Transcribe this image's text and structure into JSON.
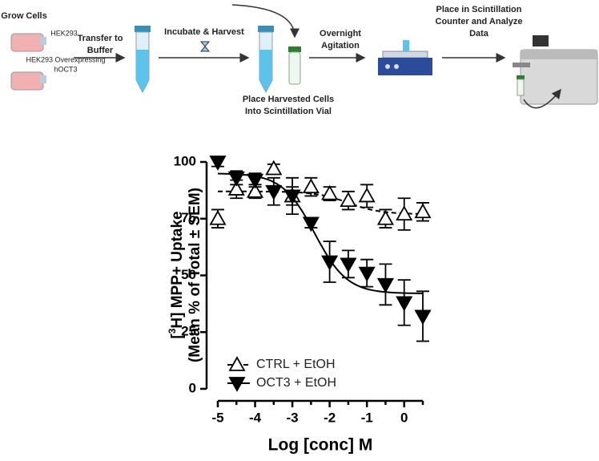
{
  "workflow": {
    "steps": [
      {
        "label": [
          "Grow Cells"
        ]
      },
      {
        "label": [
          "HEK293"
        ]
      },
      {
        "label": [
          "HEK293 Overexpressing",
          "hOCT3"
        ]
      },
      {
        "label": [
          "Transfer to",
          "Buffer"
        ]
      },
      {
        "label": [
          "Incubate & Harvest"
        ]
      },
      {
        "label": [
          "Place Harvested Cells",
          "Into Scintillation Vial"
        ]
      },
      {
        "label": [
          "Overnight",
          "Agitation"
        ]
      },
      {
        "label": [
          "Place in Scintillation",
          "Counter and Analyze",
          "Data"
        ]
      }
    ]
  },
  "chart_data": {
    "type": "scatter",
    "y_label": {
      "pre": "[",
      "sup": "3",
      "post": "H] MPP+ Uptake",
      "line2": "(Mean % of Total ± SEM)"
    },
    "x_label": "Log [conc] M",
    "xlim": [
      -5,
      0.5
    ],
    "xticks": [
      -5,
      -4,
      -3,
      -2,
      -1,
      0
    ],
    "xminorticks": [
      -4.5,
      -3.5,
      -2.5,
      -1.5,
      -0.5,
      0.5
    ],
    "ylim": [
      0,
      100
    ],
    "yticks": [
      0,
      25,
      50,
      75,
      100
    ],
    "legend": "lower left",
    "series": [
      {
        "name": "CTRL + EtOH",
        "color": "#000000",
        "marker": "triangle-up-open",
        "line": "dashed",
        "x": [
          -5,
          -4.5,
          -4,
          -3.5,
          -3,
          -2.5,
          -2,
          -1.5,
          -1,
          -0.5,
          0,
          0.5
        ],
        "values": [
          75,
          88,
          87,
          97,
          85,
          89,
          86,
          83,
          85,
          75,
          77,
          78
        ],
        "errors": [
          4,
          4,
          3,
          2,
          4,
          4,
          3,
          4,
          5,
          4,
          7,
          4
        ],
        "fit": {
          "top": 87,
          "bottom": 77,
          "log_ec50": -1.5,
          "hill": 1
        }
      },
      {
        "name": "OCT3 + EtOH",
        "color": "#000000",
        "marker": "triangle-down-filled",
        "line": "solid",
        "x": [
          -5,
          -4.5,
          -4,
          -3.5,
          -3,
          -2.5,
          -2,
          -1.5,
          -1,
          -0.5,
          0,
          0.5
        ],
        "values": [
          100,
          93,
          92,
          87,
          85,
          73,
          56,
          55,
          51,
          46,
          38,
          32
        ],
        "errors": [
          2,
          3,
          3,
          6,
          8,
          2,
          9,
          6,
          6,
          9,
          10,
          11
        ],
        "fit": {
          "top": 95,
          "bottom": 42,
          "log_ec50": -2.4,
          "hill": 1
        }
      }
    ]
  }
}
